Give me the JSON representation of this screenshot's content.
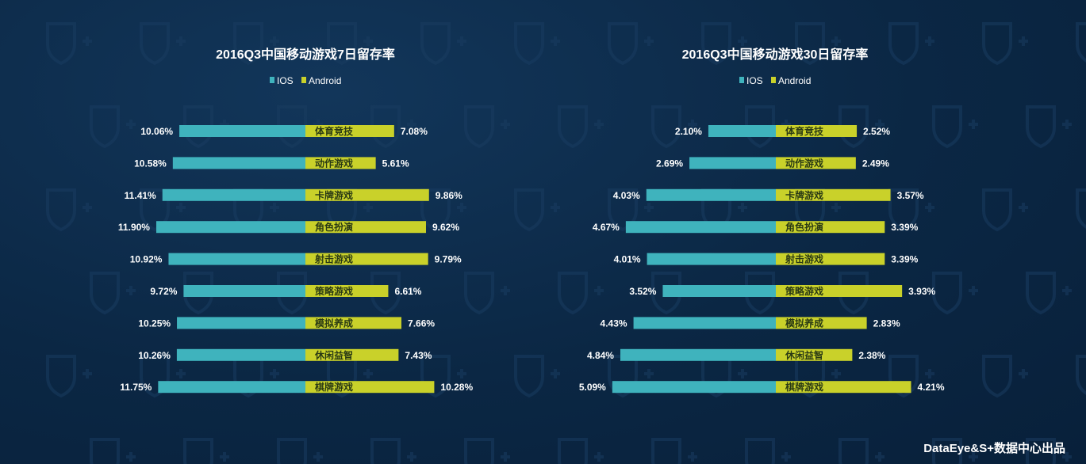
{
  "colors": {
    "ios": "#3fb3bd",
    "android": "#c9d12a",
    "text": "#ffffff"
  },
  "footer": "DataEye&S+数据中心出品",
  "chart_data": [
    {
      "type": "bar",
      "title": "2016Q3中国移动游戏7日留存率",
      "legend": [
        "IOS",
        "Android"
      ],
      "categories": [
        "体育竞技",
        "动作游戏",
        "卡牌游戏",
        "角色扮演",
        "射击游戏",
        "策略游戏",
        "模拟养成",
        "休闲益智",
        "棋牌游戏"
      ],
      "series": [
        {
          "name": "IOS",
          "values": [
            10.06,
            10.58,
            11.41,
            11.9,
            10.92,
            9.72,
            10.25,
            10.26,
            11.75
          ],
          "labels": [
            "10.06%",
            "10.58%",
            "11.41%",
            "11.90%",
            "10.92%",
            "9.72%",
            "10.25%",
            "10.26%",
            "11.75%"
          ]
        },
        {
          "name": "Android",
          "values": [
            7.08,
            5.61,
            9.86,
            9.62,
            9.79,
            6.61,
            7.66,
            7.43,
            10.28
          ],
          "labels": [
            "7.08%",
            "5.61%",
            "9.86%",
            "9.62%",
            "9.79%",
            "6.61%",
            "7.66%",
            "7.43%",
            "10.28%"
          ]
        }
      ]
    },
    {
      "type": "bar",
      "title": "2016Q3中国移动游戏30日留存率",
      "legend": [
        "IOS",
        "Android"
      ],
      "categories": [
        "体育竞技",
        "动作游戏",
        "卡牌游戏",
        "角色扮演",
        "射击游戏",
        "策略游戏",
        "模拟养成",
        "休闲益智",
        "棋牌游戏"
      ],
      "series": [
        {
          "name": "IOS",
          "values": [
            2.1,
            2.69,
            4.03,
            4.67,
            4.01,
            3.52,
            4.43,
            4.84,
            5.09
          ],
          "labels": [
            "2.10%",
            "2.69%",
            "4.03%",
            "4.67%",
            "4.01%",
            "3.52%",
            "4.43%",
            "4.84%",
            "5.09%"
          ]
        },
        {
          "name": "Android",
          "values": [
            2.52,
            2.49,
            3.57,
            3.39,
            3.39,
            3.93,
            2.83,
            2.38,
            4.21
          ],
          "labels": [
            "2.52%",
            "2.49%",
            "3.57%",
            "3.39%",
            "3.39%",
            "3.93%",
            "2.83%",
            "2.38%",
            "4.21%"
          ]
        }
      ]
    }
  ]
}
